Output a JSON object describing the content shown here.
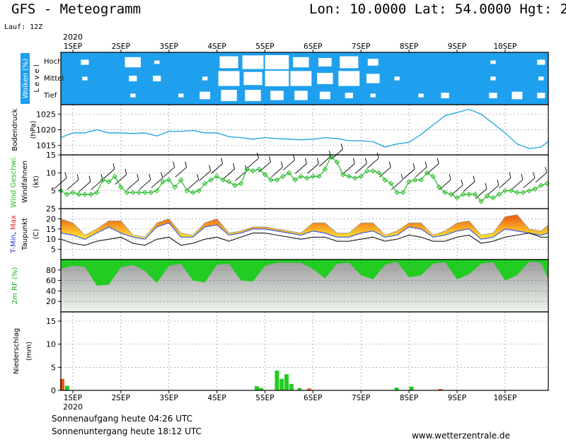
{
  "header": {
    "title_left": "GFS - Meteogramm",
    "title_right": "Lon: 10.0000 Lat: 54.0000 Hgt: 2",
    "run_label": "Lauf: 12Z"
  },
  "footer": {
    "sunrise": "Sonnenaufgang heute 04:26 UTC",
    "sunset": "Sonnenuntergang heute 18:12 UTC",
    "website": "www.wetterzentrale.de"
  },
  "time_axis": {
    "year_label": "2020",
    "days": [
      "1SEP",
      "2SEP",
      "3SEP",
      "4SEP",
      "5SEP",
      "6SEP",
      "7SEP",
      "8SEP",
      "9SEP",
      "10SEP"
    ],
    "start_offset_days": -0.25,
    "end_offset_days": 9.9
  },
  "colors": {
    "sky": "#1fa0ee",
    "cloud": "#ffffff",
    "pressure": "#1ea0e0",
    "wind": "#22bb22",
    "temp_fill_top": "#ee5511",
    "temp_fill_bottom": "#ffee33",
    "rh_fill": "#22cc22",
    "precip_green": "#22cc22",
    "precip_red": "#ee5511"
  },
  "chart_data": [
    {
      "type": "heatmap",
      "id": "clouds",
      "ylabel": "Wolken (%)",
      "ylabel2": "L e v e l",
      "levels": [
        "Hoch",
        "Mittel",
        "Tief"
      ],
      "x_days": [
        0.0,
        0.5,
        1.0,
        1.5,
        2.0,
        2.5,
        3.0,
        3.5,
        4.0,
        4.5,
        5.0,
        5.5,
        6.0,
        6.5,
        7.0,
        7.5,
        8.0,
        8.5,
        9.0,
        9.5
      ],
      "high_cover": [
        0.3,
        0.1,
        0.6,
        0.2,
        0.1,
        0.1,
        0.7,
        0.8,
        0.9,
        0.6,
        0.5,
        0.7,
        0.4,
        0.1,
        0.1,
        0.1,
        0.1,
        0.2,
        0.1,
        0.3
      ],
      "middle_cover": [
        0.2,
        0.1,
        0.3,
        0.3,
        0.1,
        0.2,
        0.8,
        0.7,
        0.9,
        0.8,
        0.6,
        0.8,
        0.5,
        0.2,
        0.1,
        0.1,
        0.1,
        0.2,
        0.1,
        0.2
      ],
      "low_cover": [
        0.1,
        0.1,
        0.2,
        0.1,
        0.2,
        0.4,
        0.6,
        0.6,
        0.5,
        0.5,
        0.4,
        0.3,
        0.2,
        0.1,
        0.2,
        0.3,
        0.1,
        0.3,
        0.4,
        0.3
      ]
    },
    {
      "type": "line",
      "id": "pressure",
      "ylabel": "Bodendruck",
      "unit": "(hPa)",
      "ylim": [
        1012,
        1028
      ],
      "yticks": [
        1015,
        1020,
        1025
      ],
      "x_days": [
        -0.25,
        0.0,
        0.25,
        0.5,
        0.75,
        1.0,
        1.25,
        1.5,
        1.75,
        2.0,
        2.25,
        2.5,
        2.75,
        3.0,
        3.25,
        3.5,
        3.75,
        4.0,
        4.25,
        4.5,
        4.75,
        5.0,
        5.25,
        5.5,
        5.75,
        6.0,
        6.25,
        6.5,
        6.75,
        7.0,
        7.25,
        7.5,
        7.75,
        8.0,
        8.25,
        8.5,
        8.75,
        9.0,
        9.25,
        9.5,
        9.75,
        9.9
      ],
      "values": [
        1017.5,
        1019,
        1019,
        1020,
        1019,
        1019,
        1018.8,
        1019,
        1018,
        1019.5,
        1019.5,
        1019.8,
        1019,
        1019,
        1017.8,
        1017.5,
        1017,
        1017.5,
        1017.2,
        1017,
        1016.8,
        1017,
        1017.5,
        1017.2,
        1016.5,
        1016.5,
        1016.2,
        1014.5,
        1015.5,
        1016,
        1018.5,
        1021.5,
        1024.5,
        1025.5,
        1026.5,
        1025,
        1022,
        1019,
        1015.5,
        1014,
        1014.5,
        1016.3
      ],
      "grid": true
    },
    {
      "type": "line",
      "id": "wind",
      "ylabel": "Wind Geschwi.",
      "ylabel2": "Windfahnen",
      "unit": "(kt)",
      "ylim": [
        0,
        15
      ],
      "yticks": [
        5,
        10,
        15
      ],
      "x_days": [
        -0.25,
        -0.125,
        0.0,
        0.125,
        0.25,
        0.375,
        0.5,
        0.625,
        0.75,
        0.875,
        1.0,
        1.125,
        1.25,
        1.375,
        1.5,
        1.625,
        1.75,
        1.875,
        2.0,
        2.125,
        2.25,
        2.375,
        2.5,
        2.625,
        2.75,
        2.875,
        3.0,
        3.125,
        3.25,
        3.375,
        3.5,
        3.625,
        3.75,
        3.875,
        4.0,
        4.125,
        4.25,
        4.375,
        4.5,
        4.625,
        4.75,
        4.875,
        5.0,
        5.125,
        5.25,
        5.375,
        5.5,
        5.625,
        5.75,
        5.875,
        6.0,
        6.125,
        6.25,
        6.375,
        6.5,
        6.625,
        6.75,
        6.875,
        7.0,
        7.125,
        7.25,
        7.375,
        7.5,
        7.625,
        7.75,
        7.875,
        8.0,
        8.125,
        8.25,
        8.375,
        8.5,
        8.625,
        8.75,
        8.875,
        9.0,
        9.125,
        9.25,
        9.375,
        9.5,
        9.625,
        9.75,
        9.875
      ],
      "values": [
        5,
        4,
        4.5,
        4,
        4,
        4,
        4.5,
        8,
        7.5,
        9,
        6,
        4.5,
        4.5,
        4.5,
        4.5,
        4.5,
        5,
        7.5,
        8,
        6,
        8,
        5,
        4.5,
        5,
        7,
        8,
        9,
        8,
        7.5,
        6.5,
        7,
        11,
        10.5,
        11,
        9.5,
        8,
        8,
        9,
        10,
        8,
        9,
        8.5,
        9,
        9,
        11,
        14.5,
        13,
        9.5,
        9,
        8.5,
        9,
        10.5,
        10.5,
        10,
        8,
        7,
        4.5,
        4.5,
        7.5,
        8,
        8,
        10,
        9,
        6,
        4.5,
        4,
        3,
        4,
        4,
        4,
        2,
        3.5,
        3,
        4,
        5,
        5,
        4.5,
        4.5,
        5,
        5.5,
        6.5,
        7
      ],
      "grid": true
    },
    {
      "type": "area",
      "id": "temperature",
      "ylabel": "T-Min, Max",
      "ylabel2": "Taupunkt",
      "unit": "(C)",
      "ylim": [
        0,
        25
      ],
      "yticks": [
        5,
        10,
        15,
        20,
        25
      ],
      "x_days": [
        -0.25,
        0.0,
        0.25,
        0.5,
        0.75,
        1.0,
        1.25,
        1.5,
        1.75,
        2.0,
        2.25,
        2.5,
        2.75,
        3.0,
        3.25,
        3.5,
        3.75,
        4.0,
        4.25,
        4.5,
        4.75,
        5.0,
        5.25,
        5.5,
        5.75,
        6.0,
        6.25,
        6.5,
        6.75,
        7.0,
        7.25,
        7.5,
        7.75,
        8.0,
        8.25,
        8.5,
        8.75,
        9.0,
        9.25,
        9.5,
        9.75,
        9.9
      ],
      "series": [
        {
          "name": "T-Max",
          "values": [
            20,
            18,
            12,
            15,
            19,
            19,
            12,
            11,
            18,
            20,
            13,
            12,
            18,
            20,
            13,
            14,
            16,
            16,
            15,
            14,
            13,
            18,
            18,
            13,
            13,
            18,
            18,
            12,
            14,
            18,
            18,
            12,
            14,
            18,
            19,
            12,
            13,
            21,
            22,
            15,
            14,
            17
          ]
        },
        {
          "name": "T-Min",
          "values": [
            13,
            12,
            10,
            13,
            16,
            13,
            11,
            10,
            16,
            18,
            11,
            11,
            16,
            17,
            12,
            13,
            15,
            15,
            14,
            13,
            12,
            14,
            13,
            11,
            11,
            13,
            14,
            11,
            12,
            16,
            15,
            11,
            12,
            14,
            15,
            10,
            11,
            15,
            14,
            13,
            12,
            13
          ]
        },
        {
          "name": "Taupunkt",
          "values": [
            10,
            8,
            7,
            9,
            10,
            11,
            8,
            7,
            10,
            11,
            7,
            8,
            10,
            11,
            9,
            11,
            13,
            13,
            12,
            11,
            10,
            11,
            11,
            9,
            9,
            10,
            11,
            9,
            10,
            12,
            11,
            9,
            9,
            11,
            12,
            8,
            9,
            11,
            12,
            13,
            11,
            11
          ]
        }
      ],
      "grid": true
    },
    {
      "type": "area",
      "id": "humidity",
      "ylabel": "2m RF (%)",
      "ylim": [
        0,
        100
      ],
      "yticks": [
        20,
        40,
        60,
        80
      ],
      "x_days": [
        -0.25,
        0.0,
        0.25,
        0.5,
        0.75,
        1.0,
        1.25,
        1.5,
        1.75,
        2.0,
        2.25,
        2.5,
        2.75,
        3.0,
        3.25,
        3.5,
        3.75,
        4.0,
        4.25,
        4.5,
        4.75,
        5.0,
        5.25,
        5.5,
        5.75,
        6.0,
        6.25,
        6.5,
        6.75,
        7.0,
        7.25,
        7.5,
        7.75,
        8.0,
        8.25,
        8.5,
        8.75,
        9.0,
        9.25,
        9.5,
        9.75,
        9.9
      ],
      "values": [
        82,
        88,
        86,
        50,
        52,
        85,
        90,
        78,
        55,
        88,
        92,
        60,
        56,
        90,
        92,
        60,
        58,
        88,
        94,
        94,
        94,
        82,
        64,
        92,
        94,
        70,
        62,
        90,
        96,
        66,
        70,
        92,
        95,
        62,
        72,
        92,
        95,
        60,
        70,
        96,
        94,
        62
      ],
      "grid": true
    },
    {
      "type": "bar",
      "id": "precip",
      "ylabel": "Niederschlag",
      "unit": "(mm)",
      "ylim": [
        0,
        17
      ],
      "yticks": [
        0,
        5,
        10,
        15
      ],
      "x_days": [
        -0.22,
        -0.12,
        3.83,
        3.92,
        4.25,
        4.35,
        4.45,
        4.55,
        4.72,
        4.92,
        6.74,
        7.05,
        7.65
      ],
      "values": [
        2.5,
        1.0,
        0.9,
        0.5,
        4.3,
        2.5,
        3.5,
        1.4,
        0.5,
        0.4,
        0.6,
        0.8,
        0.3
      ],
      "kinds": [
        "red",
        "green",
        "green",
        "green",
        "green",
        "green",
        "green",
        "green",
        "green",
        "red",
        "green",
        "green",
        "red"
      ],
      "grid": true
    }
  ]
}
